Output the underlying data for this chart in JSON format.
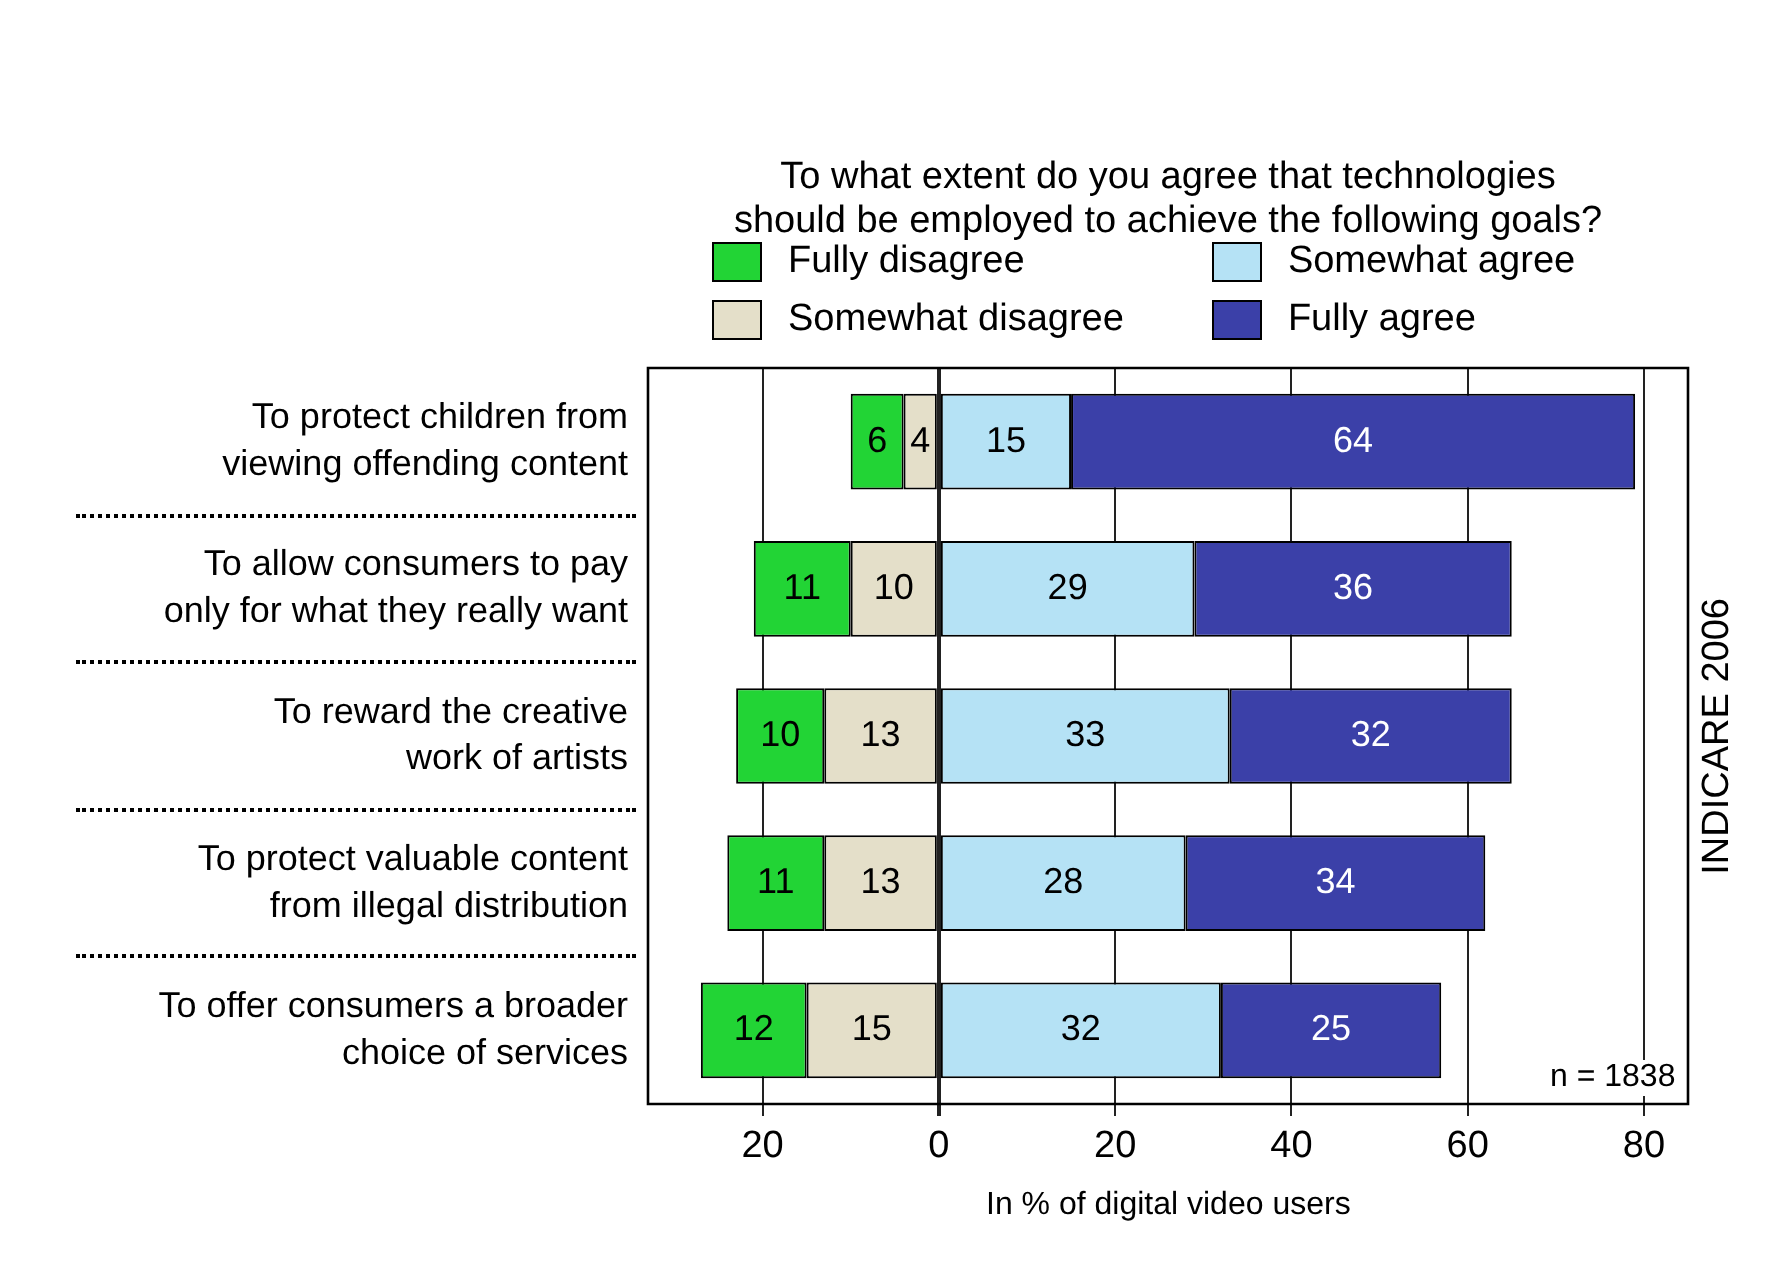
{
  "chart_data": {
    "type": "bar",
    "orientation": "horizontal",
    "title": "To what extent do you agree that technologies\nshould be employed to achieve the following goals?",
    "categories": [
      "To protect children from\nviewing offending content",
      "To allow consumers to pay\nonly for what they really want",
      "To reward the creative\nwork of artists",
      "To protect valuable content\nfrom illegal distribution",
      "To offer consumers a broader\nchoice of services"
    ],
    "series": [
      {
        "name": "Somewhat disagree",
        "color": "#e4dfc9",
        "values": [
          4,
          10,
          13,
          13,
          15
        ],
        "base": [
          -4,
          -10,
          -13,
          -13,
          -15
        ]
      },
      {
        "name": "Fully disagree",
        "color": "#22d435",
        "values": [
          6,
          11,
          10,
          11,
          12
        ],
        "base": [
          -10,
          -21,
          -23,
          -24,
          -27
        ]
      },
      {
        "name": "Somewhat agree",
        "color": "#b5e2f5",
        "values": [
          15,
          29,
          33,
          28,
          32
        ],
        "base": [
          0,
          0,
          0,
          0,
          0
        ]
      },
      {
        "name": "Fully agree",
        "color": "#3b40a8",
        "values": [
          64,
          36,
          32,
          34,
          25
        ],
        "base": [
          15,
          29,
          33,
          28,
          32
        ]
      }
    ],
    "data_labels": true,
    "xlabel": "In % of digital video users",
    "xlim": [
      -33,
      85
    ],
    "xticks": [
      {
        "value": -20,
        "label": "20"
      },
      0,
      20,
      40,
      60,
      80
    ],
    "grid": "x",
    "legend": "top",
    "annotations": [
      "n = 1838",
      "INDICARE 2006"
    ]
  }
}
